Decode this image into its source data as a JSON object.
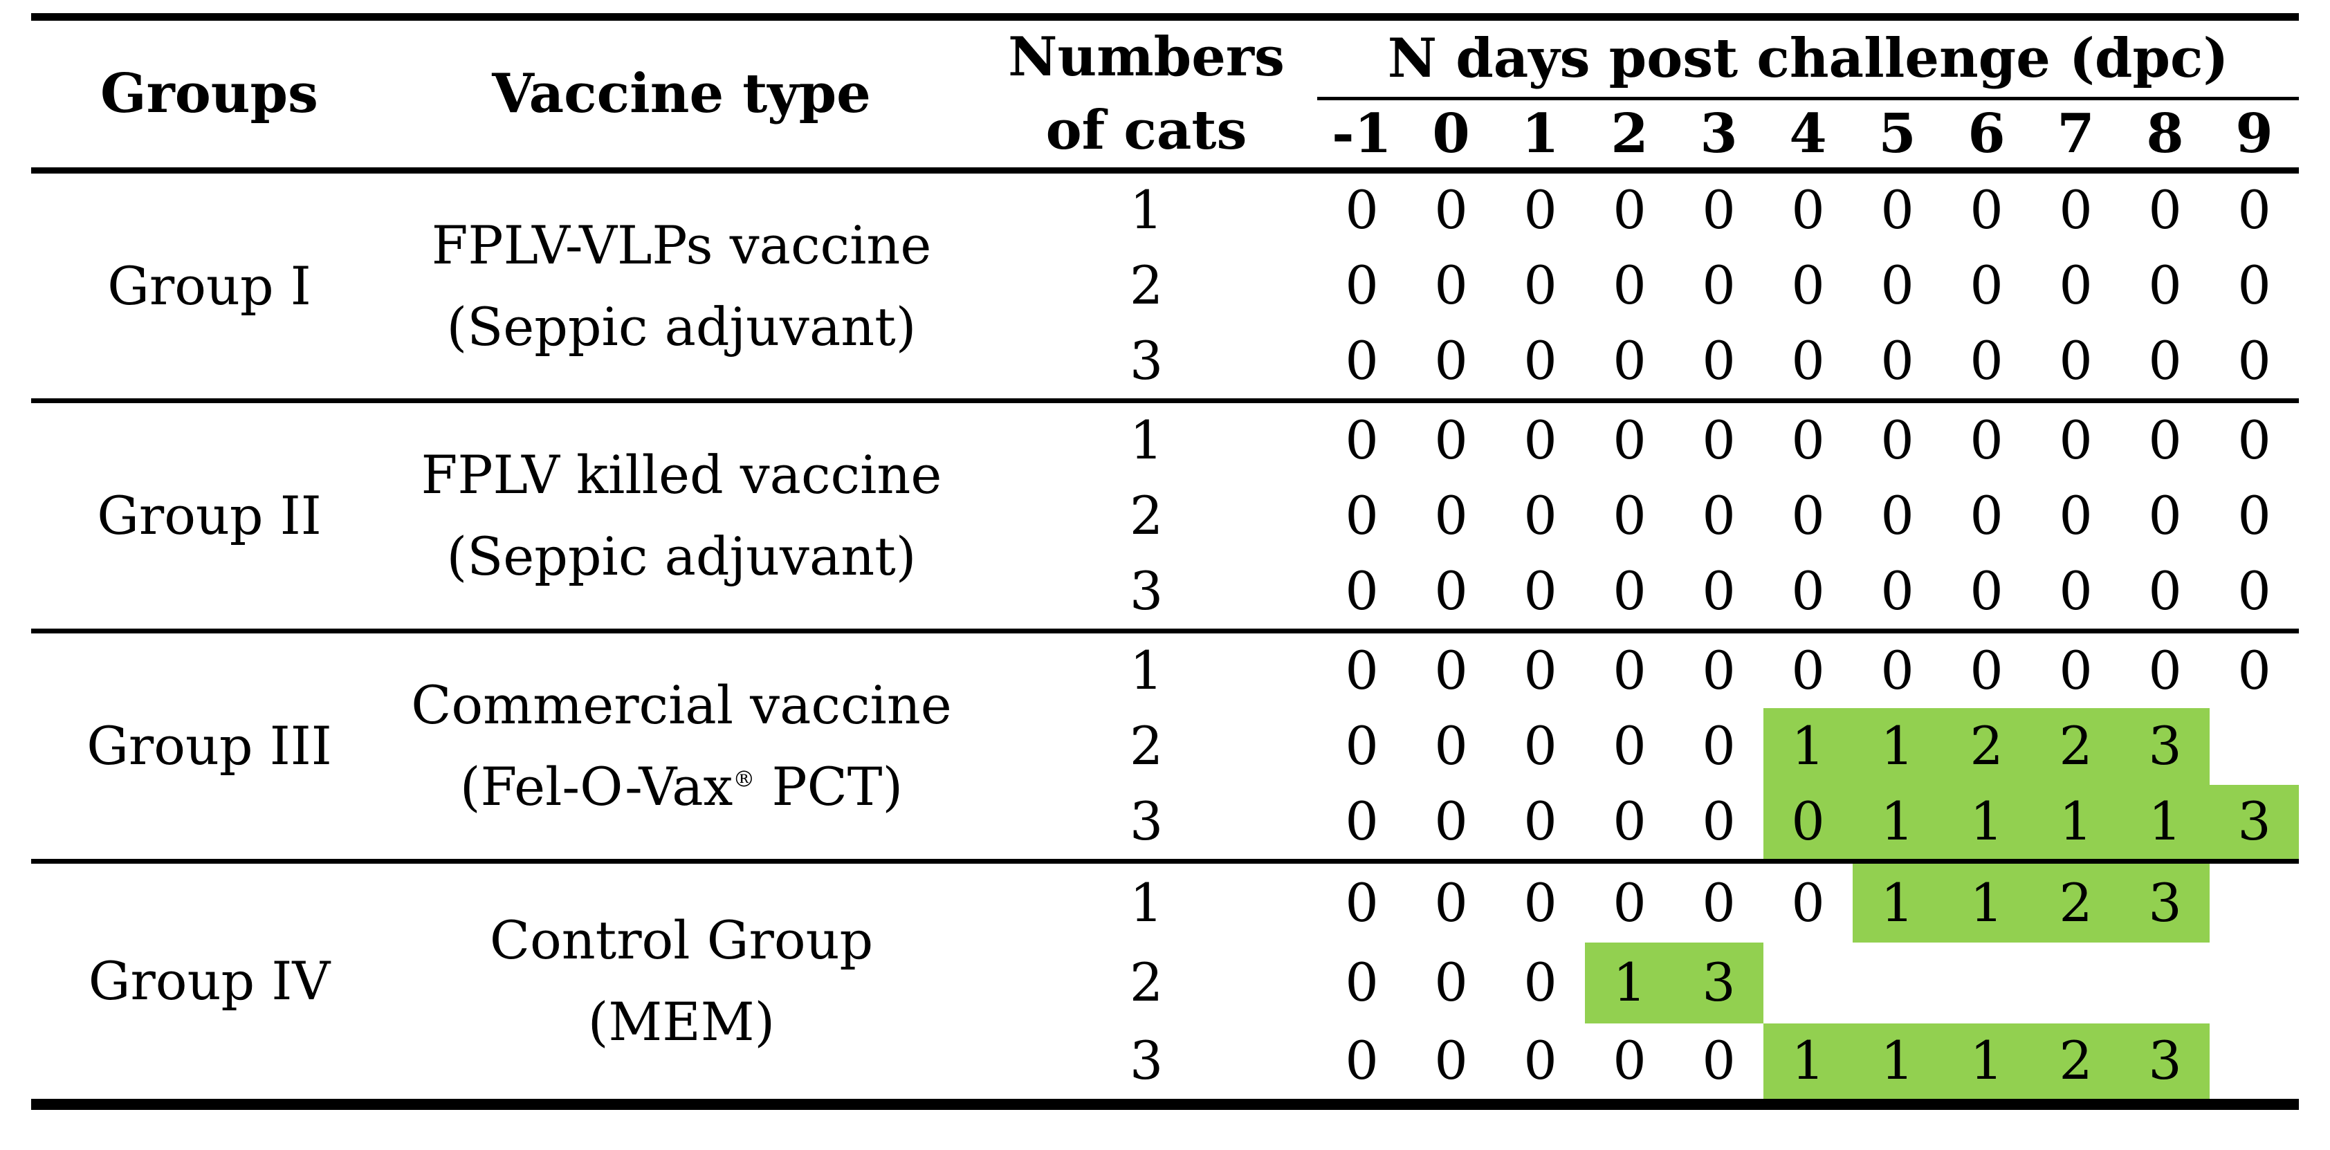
{
  "table": {
    "header": {
      "groups": "Groups",
      "vaccine_type": "Vaccine type",
      "cats_line1": "Numbers",
      "cats_line2": "of cats",
      "dpc_label": "N days post challenge (dpc)",
      "dpc_days": [
        "-1",
        "0",
        "1",
        "2",
        "3",
        "4",
        "5",
        "6",
        "7",
        "8",
        "9"
      ]
    },
    "highlight_color": "#92d050",
    "text_color": "#000000",
    "groups": [
      {
        "name": "Group I",
        "vaccine": [
          "FPLV-VLPs vaccine",
          "(Seppic adjuvant)"
        ],
        "cats": [
          {
            "n": "1",
            "values": [
              "0",
              "0",
              "0",
              "0",
              "0",
              "0",
              "0",
              "0",
              "0",
              "0",
              "0"
            ],
            "highlighted": []
          },
          {
            "n": "2",
            "values": [
              "0",
              "0",
              "0",
              "0",
              "0",
              "0",
              "0",
              "0",
              "0",
              "0",
              "0"
            ],
            "highlighted": []
          },
          {
            "n": "3",
            "values": [
              "0",
              "0",
              "0",
              "0",
              "0",
              "0",
              "0",
              "0",
              "0",
              "0",
              "0"
            ],
            "highlighted": []
          }
        ]
      },
      {
        "name": "Group II",
        "vaccine": [
          "FPLV killed vaccine",
          "(Seppic adjuvant)"
        ],
        "cats": [
          {
            "n": "1",
            "values": [
              "0",
              "0",
              "0",
              "0",
              "0",
              "0",
              "0",
              "0",
              "0",
              "0",
              "0"
            ],
            "highlighted": []
          },
          {
            "n": "2",
            "values": [
              "0",
              "0",
              "0",
              "0",
              "0",
              "0",
              "0",
              "0",
              "0",
              "0",
              "0"
            ],
            "highlighted": []
          },
          {
            "n": "3",
            "values": [
              "0",
              "0",
              "0",
              "0",
              "0",
              "0",
              "0",
              "0",
              "0",
              "0",
              "0"
            ],
            "highlighted": []
          }
        ]
      },
      {
        "name": "Group III",
        "vaccine": [
          "Commercial vaccine",
          "(Fel-O-Vax® PCT)"
        ],
        "cats": [
          {
            "n": "1",
            "values": [
              "0",
              "0",
              "0",
              "0",
              "0",
              "0",
              "0",
              "0",
              "0",
              "0",
              "0"
            ],
            "highlighted": []
          },
          {
            "n": "2",
            "values": [
              "0",
              "0",
              "0",
              "0",
              "0",
              "1",
              "1",
              "2",
              "2",
              "3",
              ""
            ],
            "highlighted": [
              5,
              6,
              7,
              8,
              9
            ]
          },
          {
            "n": "3",
            "values": [
              "0",
              "0",
              "0",
              "0",
              "0",
              "0",
              "1",
              "1",
              "1",
              "1",
              "3"
            ],
            "highlighted": [
              5,
              6,
              7,
              8,
              9,
              10
            ]
          }
        ]
      },
      {
        "name": "Group IV",
        "vaccine": [
          "Control Group",
          "(MEM)"
        ],
        "cats": [
          {
            "n": "1",
            "values": [
              "0",
              "0",
              "0",
              "0",
              "0",
              "0",
              "1",
              "1",
              "2",
              "3",
              ""
            ],
            "highlighted": [
              6,
              7,
              8,
              9
            ]
          },
          {
            "n": "2",
            "values": [
              "0",
              "0",
              "0",
              "1",
              "3",
              "",
              "",
              "",
              "",
              "",
              ""
            ],
            "highlighted": [
              3,
              4
            ]
          },
          {
            "n": "3",
            "values": [
              "0",
              "0",
              "0",
              "0",
              "0",
              "1",
              "1",
              "1",
              "2",
              "3",
              ""
            ],
            "highlighted": [
              5,
              6,
              7,
              8,
              9
            ]
          }
        ]
      }
    ]
  }
}
